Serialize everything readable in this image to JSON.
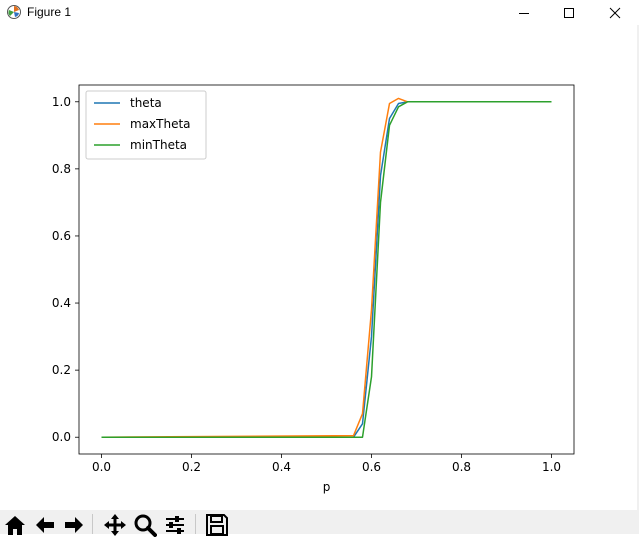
{
  "window": {
    "title": "Figure 1",
    "controls": [
      "minimize-icon",
      "maximize-icon",
      "close-icon"
    ]
  },
  "toolbar": {
    "buttons": [
      "home-icon",
      "back-icon",
      "forward-icon",
      "pan-icon",
      "zoom-icon",
      "configure-subplots-icon",
      "save-icon"
    ]
  },
  "chart_data": {
    "type": "line",
    "title": "",
    "xlabel": "p",
    "ylabel": "",
    "xlim": [
      -0.05,
      1.05
    ],
    "ylim": [
      -0.05,
      1.05
    ],
    "xticks": [
      "0.0",
      "0.2",
      "0.4",
      "0.6",
      "0.8",
      "1.0"
    ],
    "yticks": [
      "0.0",
      "0.2",
      "0.4",
      "0.6",
      "0.8",
      "1.0"
    ],
    "grid": false,
    "legend_position": "upper-left",
    "series": [
      {
        "name": "theta",
        "color": "#1f77b4",
        "x": [
          0.0,
          0.56,
          0.58,
          0.6,
          0.62,
          0.64,
          0.66,
          0.68,
          1.0
        ],
        "y": [
          0.0,
          0.0,
          0.04,
          0.3,
          0.78,
          0.95,
          0.995,
          1.0,
          1.0
        ]
      },
      {
        "name": "maxTheta",
        "color": "#ff7f0e",
        "x": [
          0.0,
          0.56,
          0.58,
          0.6,
          0.62,
          0.64,
          0.66,
          0.68,
          1.0
        ],
        "y": [
          0.0,
          0.005,
          0.07,
          0.38,
          0.85,
          0.995,
          1.01,
          1.0,
          1.0
        ]
      },
      {
        "name": "minTheta",
        "color": "#2ca02c",
        "x": [
          0.0,
          0.58,
          0.6,
          0.62,
          0.64,
          0.66,
          0.68,
          1.0
        ],
        "y": [
          0.0,
          0.0,
          0.18,
          0.7,
          0.93,
          0.985,
          1.0,
          1.0
        ]
      }
    ]
  }
}
